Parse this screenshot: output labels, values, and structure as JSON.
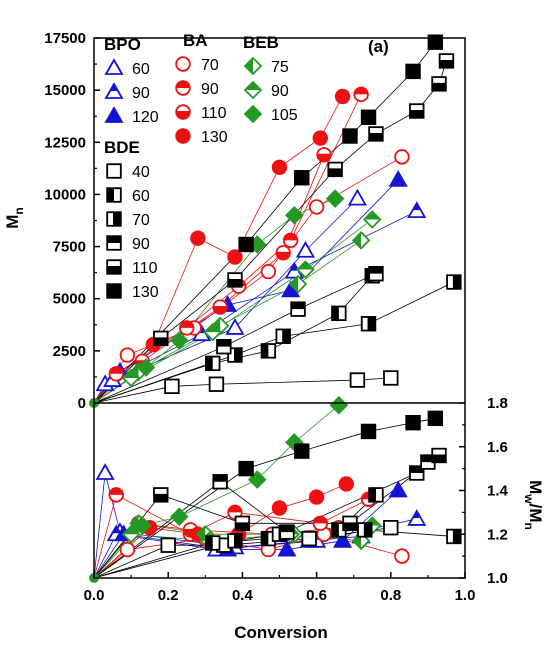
{
  "chart_data": {
    "type": "scatter",
    "panel_label": "(a)",
    "xlabel": "Conversion",
    "xlim": [
      0.0,
      1.0
    ],
    "x_ticks": [
      "0.0",
      "0.2",
      "0.4",
      "0.6",
      "0.8",
      "1.0"
    ],
    "top": {
      "ylabel_main": "M",
      "ylabel_sub": "n",
      "ylim": [
        0,
        17500
      ],
      "y_ticks": [
        "0",
        "2500",
        "5000",
        "7500",
        "10000",
        "12500",
        "15000",
        "17500"
      ]
    },
    "bottom": {
      "ylabel_main": "M",
      "ylabel_sub1": "w",
      "ylabel_sep": "/M",
      "ylabel_sub2": "n",
      "ylim": [
        1.0,
        1.8
      ],
      "y_ticks": [
        "1.0",
        "1.2",
        "1.4",
        "1.6",
        "1.8"
      ]
    },
    "colors": {
      "blue": "#1414d2",
      "red": "#ee1111",
      "green": "#249a24",
      "black": "#000000"
    },
    "legend_groups": [
      {
        "title": "BPO",
        "entries": [
          {
            "label": "60",
            "series": 0
          },
          {
            "label": "90",
            "series": 1
          },
          {
            "label": "120",
            "series": 2
          }
        ]
      },
      {
        "title": "BA",
        "entries": [
          {
            "label": "70",
            "series": 3
          },
          {
            "label": "90",
            "series": 4
          },
          {
            "label": "110",
            "series": 5
          },
          {
            "label": "130",
            "series": 6
          }
        ]
      },
      {
        "title": "BEB",
        "entries": [
          {
            "label": "75",
            "series": 7
          },
          {
            "label": "90",
            "series": 8
          },
          {
            "label": "105",
            "series": 9
          }
        ]
      },
      {
        "title": "BDE",
        "entries": [
          {
            "label": "40",
            "series": 10
          },
          {
            "label": "60",
            "series": 11
          },
          {
            "label": "70",
            "series": 12
          },
          {
            "label": "90",
            "series": 13
          },
          {
            "label": "110",
            "series": 14
          },
          {
            "label": "130",
            "series": 15
          }
        ]
      }
    ],
    "series": [
      {
        "group": "BPO",
        "name": "60",
        "color": "blue",
        "marker": "triangle",
        "fill": "open",
        "mn": [
          [
            0.03,
            900
          ],
          [
            0.38,
            3600
          ],
          [
            0.57,
            7300
          ],
          [
            0.71,
            9800
          ]
        ],
        "pdi": [
          [
            0.03,
            1.48
          ],
          [
            0.07,
            1.21
          ],
          [
            0.38,
            1.14
          ],
          [
            0.58,
            1.17
          ],
          [
            0.72,
            1.19
          ]
        ]
      },
      {
        "group": "BPO",
        "name": "90",
        "color": "blue",
        "marker": "triangle",
        "fill": "half-top",
        "mn": [
          [
            0.05,
            1100
          ],
          [
            0.29,
            3300
          ],
          [
            0.54,
            6300
          ],
          [
            0.87,
            9200
          ]
        ],
        "pdi": [
          [
            0.06,
            1.2
          ],
          [
            0.33,
            1.13
          ],
          [
            0.6,
            1.17
          ],
          [
            0.87,
            1.27
          ]
        ]
      },
      {
        "group": "BPO",
        "name": "120",
        "color": "blue",
        "marker": "triangle",
        "fill": "solid",
        "mn": [
          [
            0.07,
            1500
          ],
          [
            0.36,
            4700
          ],
          [
            0.53,
            5400
          ],
          [
            0.82,
            10700
          ]
        ],
        "pdi": [
          [
            0.08,
            1.2
          ],
          [
            0.36,
            1.13
          ],
          [
            0.52,
            1.13
          ],
          [
            0.67,
            1.17
          ],
          [
            0.82,
            1.4
          ]
        ]
      },
      {
        "group": "BA",
        "name": "70",
        "color": "red",
        "marker": "circle",
        "fill": "open",
        "mn": [
          [
            0.09,
            2300
          ],
          [
            0.27,
            3600
          ],
          [
            0.47,
            6300
          ],
          [
            0.6,
            9400
          ],
          [
            0.83,
            11800
          ]
        ],
        "pdi": [
          [
            0.09,
            1.13
          ],
          [
            0.3,
            1.18
          ],
          [
            0.47,
            1.13
          ],
          [
            0.62,
            1.2
          ],
          [
            0.83,
            1.1
          ]
        ]
      },
      {
        "group": "BA",
        "name": "90",
        "color": "red",
        "marker": "circle",
        "fill": "half-top",
        "mn": [
          [
            0.06,
            1400
          ],
          [
            0.25,
            3600
          ],
          [
            0.39,
            5600
          ],
          [
            0.53,
            7800
          ],
          [
            0.72,
            14800
          ]
        ],
        "pdi": [
          [
            0.06,
            1.38
          ],
          [
            0.26,
            1.2
          ],
          [
            0.38,
            1.3
          ],
          [
            0.61,
            1.25
          ],
          [
            0.74,
            1.36
          ]
        ]
      },
      {
        "group": "BA",
        "name": "110",
        "color": "red",
        "marker": "circle",
        "fill": "half-bottom",
        "mn": [
          [
            0.13,
            2000
          ],
          [
            0.34,
            4600
          ],
          [
            0.51,
            7200
          ],
          [
            0.62,
            11900
          ]
        ],
        "pdi": [
          [
            0.12,
            1.25
          ],
          [
            0.26,
            1.22
          ],
          [
            0.48,
            1.2
          ],
          [
            0.66,
            1.23
          ]
        ]
      },
      {
        "group": "BA",
        "name": "130",
        "color": "red",
        "marker": "circle",
        "fill": "solid",
        "mn": [
          [
            0.16,
            2800
          ],
          [
            0.28,
            7900
          ],
          [
            0.38,
            7000
          ],
          [
            0.5,
            11300
          ],
          [
            0.61,
            12700
          ],
          [
            0.67,
            14700
          ]
        ],
        "pdi": [
          [
            0.15,
            1.23
          ],
          [
            0.28,
            1.2
          ],
          [
            0.39,
            1.2
          ],
          [
            0.5,
            1.32
          ],
          [
            0.6,
            1.37
          ],
          [
            0.68,
            1.43
          ]
        ]
      },
      {
        "group": "BEB",
        "name": "75",
        "color": "green",
        "marker": "diamond",
        "fill": "half-left",
        "mn": [
          [
            0.12,
            1500
          ],
          [
            0.34,
            3700
          ],
          [
            0.55,
            5700
          ],
          [
            0.72,
            7800
          ]
        ],
        "pdi": [
          [
            0.12,
            1.25
          ],
          [
            0.3,
            1.2
          ],
          [
            0.54,
            1.2
          ],
          [
            0.72,
            1.17
          ]
        ]
      },
      {
        "group": "BEB",
        "name": "90",
        "color": "green",
        "marker": "diamond",
        "fill": "half-top",
        "mn": [
          [
            0.1,
            1200
          ],
          [
            0.32,
            3400
          ],
          [
            0.57,
            6400
          ],
          [
            0.75,
            8800
          ]
        ],
        "pdi": [
          [
            0.1,
            1.2
          ],
          [
            0.31,
            1.17
          ],
          [
            0.53,
            1.2
          ],
          [
            0.75,
            1.24
          ]
        ]
      },
      {
        "group": "BEB",
        "name": "105",
        "color": "green",
        "marker": "diamond",
        "fill": "solid",
        "mn": [
          [
            0.14,
            1700
          ],
          [
            0.23,
            3000
          ],
          [
            0.44,
            7600
          ],
          [
            0.54,
            9000
          ],
          [
            0.65,
            9800
          ]
        ],
        "pdi": [
          [
            0.13,
            1.24
          ],
          [
            0.23,
            1.28
          ],
          [
            0.44,
            1.45
          ],
          [
            0.54,
            1.62
          ],
          [
            0.66,
            1.79
          ]
        ]
      },
      {
        "group": "BDE",
        "name": "40",
        "color": "black",
        "marker": "square",
        "fill": "open",
        "mn": [
          [
            0.21,
            800
          ],
          [
            0.33,
            900
          ],
          [
            0.71,
            1100
          ],
          [
            0.8,
            1200
          ]
        ],
        "pdi": [
          [
            0.2,
            1.15
          ],
          [
            0.35,
            1.15
          ],
          [
            0.58,
            1.18
          ],
          [
            0.8,
            1.23
          ]
        ]
      },
      {
        "group": "BDE",
        "name": "60",
        "color": "black",
        "marker": "square",
        "fill": "half-left",
        "mn": [
          [
            0.32,
            1900
          ],
          [
            0.47,
            2500
          ],
          [
            0.66,
            4300
          ],
          [
            0.75,
            6100
          ]
        ],
        "pdi": [
          [
            0.32,
            1.16
          ],
          [
            0.47,
            1.18
          ],
          [
            0.66,
            1.22
          ],
          [
            0.76,
            1.38
          ]
        ]
      },
      {
        "group": "BDE",
        "name": "70",
        "color": "black",
        "marker": "square",
        "fill": "half-right",
        "mn": [
          [
            0.38,
            2300
          ],
          [
            0.51,
            3200
          ],
          [
            0.74,
            3800
          ],
          [
            0.97,
            5800
          ]
        ],
        "pdi": [
          [
            0.38,
            1.17
          ],
          [
            0.5,
            1.2
          ],
          [
            0.73,
            1.22
          ],
          [
            0.97,
            1.19
          ]
        ]
      },
      {
        "group": "BDE",
        "name": "90",
        "color": "black",
        "marker": "square",
        "fill": "half-top",
        "mn": [
          [
            0.35,
            2700
          ],
          [
            0.55,
            4500
          ],
          [
            0.76,
            6200
          ]
        ],
        "pdi": [
          [
            0.34,
            1.44
          ],
          [
            0.52,
            1.21
          ],
          [
            0.87,
            1.48
          ],
          [
            0.9,
            1.53
          ]
        ]
      },
      {
        "group": "BDE",
        "name": "110",
        "color": "black",
        "marker": "square",
        "fill": "half-bottom",
        "mn": [
          [
            0.18,
            3100
          ],
          [
            0.38,
            5900
          ],
          [
            0.65,
            11200
          ],
          [
            0.76,
            12900
          ],
          [
            0.87,
            14000
          ],
          [
            0.93,
            15300
          ],
          [
            0.95,
            16400
          ]
        ],
        "pdi": [
          [
            0.18,
            1.38
          ],
          [
            0.4,
            1.25
          ],
          [
            0.69,
            1.25
          ],
          [
            0.93,
            1.56
          ]
        ]
      },
      {
        "group": "BDE",
        "name": "130",
        "color": "black",
        "marker": "square",
        "fill": "solid",
        "mn": [
          [
            0.41,
            7600
          ],
          [
            0.56,
            10800
          ],
          [
            0.69,
            12800
          ],
          [
            0.74,
            13700
          ],
          [
            0.86,
            15900
          ],
          [
            0.92,
            17300
          ]
        ],
        "pdi": [
          [
            0.41,
            1.5
          ],
          [
            0.56,
            1.58
          ],
          [
            0.74,
            1.67
          ],
          [
            0.86,
            1.71
          ],
          [
            0.92,
            1.73
          ]
        ]
      }
    ]
  }
}
